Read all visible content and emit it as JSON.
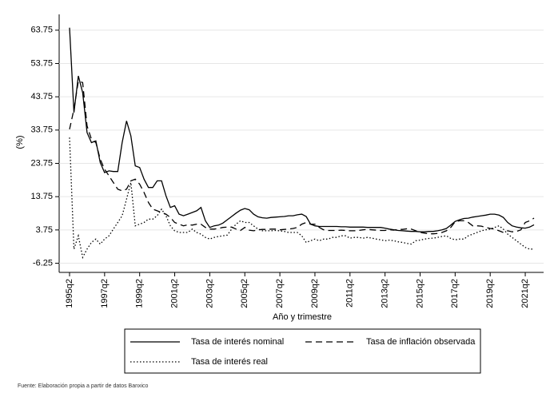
{
  "chart_data": {
    "type": "line",
    "x_label": "Año y trimestre",
    "y_label": "(%)",
    "note": "Fuente: Elaboración propia a partir de datos Banxico",
    "categories": [
      "1995q2",
      null,
      null,
      null,
      null,
      null,
      null,
      null,
      "1997q2",
      null,
      null,
      null,
      null,
      null,
      null,
      null,
      "1999q2",
      null,
      null,
      null,
      null,
      null,
      null,
      null,
      "2001q2",
      null,
      null,
      null,
      null,
      null,
      null,
      null,
      "2003q2",
      null,
      null,
      null,
      null,
      null,
      null,
      null,
      "2005q2",
      null,
      null,
      null,
      null,
      null,
      null,
      null,
      "2007q2",
      null,
      null,
      null,
      null,
      null,
      null,
      null,
      "2009q2",
      null,
      null,
      null,
      null,
      null,
      null,
      null,
      "2011q2",
      null,
      null,
      null,
      null,
      null,
      null,
      null,
      "2013q2",
      null,
      null,
      null,
      null,
      null,
      null,
      null,
      "2015q2",
      null,
      null,
      null,
      null,
      null,
      null,
      null,
      "2017q2",
      null,
      null,
      null,
      null,
      null,
      null,
      null,
      "2019q2",
      null,
      null,
      null,
      null,
      null,
      null,
      null,
      "2021q2",
      null,
      null
    ],
    "ylim": [
      -9,
      68.5
    ],
    "yticks": [
      -6.25,
      3.75,
      13.75,
      23.75,
      33.75,
      43.75,
      53.75,
      63.75
    ],
    "grid": true,
    "legend_position": "bottom",
    "series": [
      {
        "name": "Tasa de interés nominal",
        "color": "#000000",
        "line_style": "solid",
        "values": [
          64.5,
          39,
          50,
          45,
          33,
          30,
          30.5,
          24,
          21,
          21.5,
          21.3,
          21.3,
          30,
          36.5,
          32,
          23,
          22.5,
          19,
          16.5,
          16.5,
          18.5,
          18.5,
          14,
          10.5,
          11,
          8.5,
          8,
          8.5,
          9,
          9.5,
          10.5,
          6.5,
          4.5,
          5,
          5.2,
          5.8,
          6.8,
          7.8,
          8.8,
          9.7,
          10.2,
          9.8,
          8.5,
          7.7,
          7.4,
          7.3,
          7.5,
          7.6,
          7.7,
          7.8,
          8,
          8,
          8.3,
          8.5,
          7.8,
          5.5,
          5,
          4.8,
          4.8,
          4.8,
          4.8,
          4.8,
          4.7,
          4.7,
          4.6,
          4.6,
          4.6,
          4.6,
          4.5,
          4.5,
          4.5,
          4.5,
          4.3,
          4,
          3.8,
          3.6,
          3.5,
          3.4,
          3.3,
          3.3,
          3.2,
          3.2,
          3.3,
          3.3,
          3.5,
          3.8,
          4.2,
          5.2,
          6.3,
          6.8,
          7.2,
          7.3,
          7.6,
          7.8,
          8,
          8.2,
          8.5,
          8.5,
          8.2,
          7.5,
          6,
          5,
          4.6,
          4.4,
          4.3,
          4.6,
          5.3
        ]
      },
      {
        "name": "Tasa de inflación observada",
        "color": "#000000",
        "line_style": "dashed",
        "values": [
          34,
          40,
          48.5,
          48,
          35,
          31,
          30,
          25,
          22,
          20,
          18,
          16,
          15.5,
          16,
          18.5,
          19,
          17.5,
          15,
          12,
          10,
          9.5,
          9,
          8.5,
          7.5,
          6,
          5.5,
          5,
          5.3,
          5.2,
          5.5,
          5.5,
          4.5,
          4,
          4,
          4.2,
          4.5,
          4.6,
          4.6,
          4,
          3.6,
          4.5,
          3.7,
          3.5,
          3.8,
          3.9,
          3.9,
          4,
          4,
          3.8,
          3.9,
          4,
          4.2,
          4.5,
          5.5,
          6,
          5.5,
          5.5,
          4.5,
          3.8,
          3.6,
          3.6,
          3.6,
          3.7,
          3.6,
          3.5,
          3.5,
          3.6,
          3.8,
          3.9,
          3.8,
          3.7,
          3.6,
          3.6,
          3.8,
          3.7,
          3.9,
          3.9,
          4.1,
          4,
          3.5,
          3,
          2.8,
          2.6,
          2.6,
          2.7,
          3,
          3.5,
          4.5,
          6.2,
          6.5,
          6.5,
          6,
          5,
          5,
          4.9,
          4.5,
          4.2,
          4,
          3.5,
          3,
          3.5,
          3.2,
          3.3,
          3.8,
          6,
          6.5,
          7.3
        ]
      },
      {
        "name": "Tasa de interés real",
        "color": "#000000",
        "line_style": "dotted",
        "values": [
          31.5,
          -2,
          2,
          -4.5,
          -2,
          0,
          1,
          -0.5,
          1,
          2,
          4,
          6,
          8,
          13,
          18,
          5,
          5.5,
          6,
          7,
          7,
          8,
          10,
          8,
          5,
          3.5,
          3,
          3,
          3,
          4,
          3,
          2.5,
          1.5,
          1,
          1.5,
          1.8,
          2,
          2.2,
          4,
          5.5,
          6.5,
          6,
          6,
          5,
          4,
          3.5,
          3.5,
          3.5,
          3.6,
          3.5,
          3.3,
          3,
          3,
          3,
          2,
          0,
          0.5,
          1,
          0.5,
          1,
          1,
          1.5,
          1.5,
          2,
          2,
          1.3,
          1.5,
          1.5,
          1.3,
          1.5,
          1.3,
          1,
          0.8,
          0.5,
          0.7,
          0.5,
          0.2,
          0,
          -0.3,
          -0.5,
          0.5,
          0.7,
          1,
          1.2,
          1.3,
          1.5,
          1.8,
          2,
          1.2,
          0.8,
          1,
          1,
          2,
          2.5,
          3,
          3.5,
          3.8,
          4,
          4.5,
          5,
          4,
          2.5,
          1.5,
          0.5,
          -0.5,
          -1.5,
          -2,
          -2
        ]
      }
    ]
  }
}
